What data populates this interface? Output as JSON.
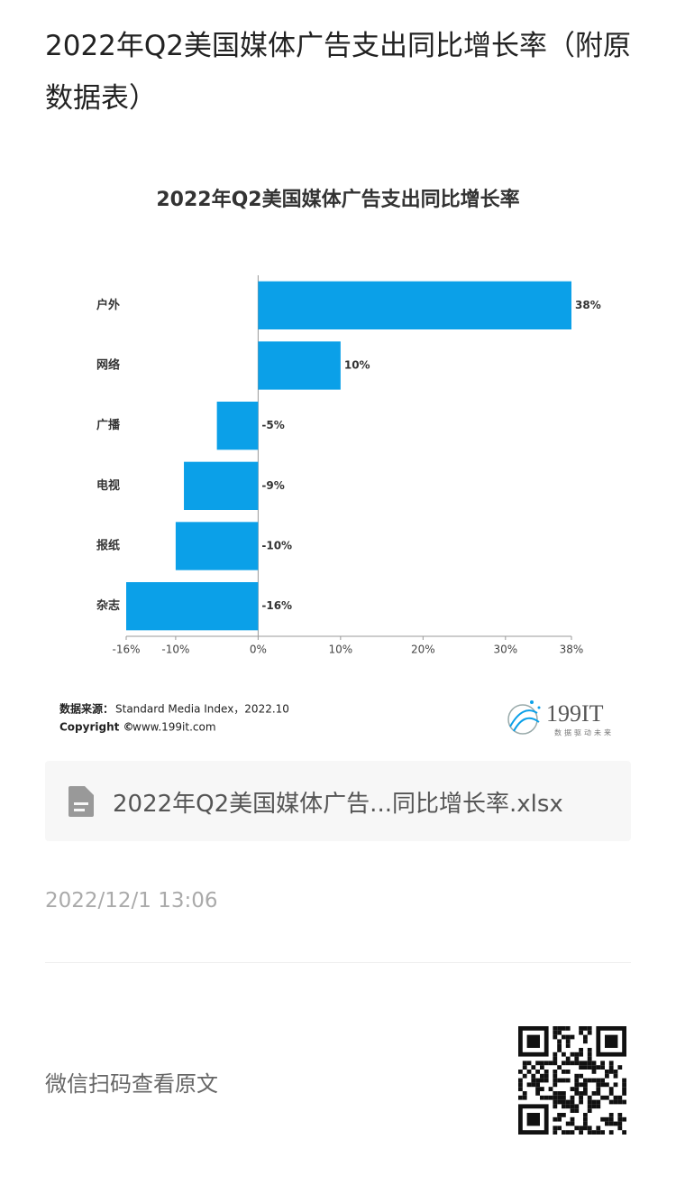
{
  "header": {
    "title": "2022年Q2美国媒体广告支出同比增长率（附原数据表）"
  },
  "chart_data": {
    "type": "barh",
    "title": "2022年Q2美国媒体广告支出同比增长率",
    "categories": [
      "户外",
      "网络",
      "广播",
      "电视",
      "报纸",
      "杂志"
    ],
    "values": [
      38,
      10,
      -5,
      -9,
      -10,
      -16
    ],
    "value_labels": [
      "38%",
      "10%",
      "-5%",
      "-9%",
      "-10%",
      "-16%"
    ],
    "color": "#0ba0e8",
    "xlim": [
      -16,
      38
    ],
    "xticks": [
      {
        "value": -16,
        "label": "-16%"
      },
      {
        "value": -10,
        "label": "-10%"
      },
      {
        "value": 0,
        "label": "0%"
      },
      {
        "value": 10,
        "label": "10%"
      },
      {
        "value": 20,
        "label": "20%"
      },
      {
        "value": 30,
        "label": "30%"
      },
      {
        "value": 38,
        "label": "38%"
      }
    ],
    "grid": false
  },
  "source": {
    "label": "数据来源：",
    "text": "Standard Media Index，2022.10",
    "copyright_label": "Copyright ©",
    "copyright": "www.199it.com"
  },
  "logo": {
    "name": "199IT",
    "slogan": "数据驱动未来"
  },
  "attachment": {
    "filename": "2022年Q2美国媒体广告...同比增长率.xlsx"
  },
  "date": "2022/12/1 13:06",
  "footer": {
    "text": "微信扫码查看原文"
  }
}
